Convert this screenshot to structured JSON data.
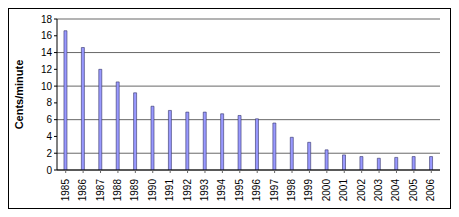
{
  "chart_data": {
    "type": "bar",
    "ylabel": "Cents/minute",
    "categories": [
      "1985",
      "1986",
      "1987",
      "1988",
      "1989",
      "1990",
      "1991",
      "1992",
      "1993",
      "1994",
      "1995",
      "1996",
      "1997",
      "1998",
      "1999",
      "2000",
      "2001",
      "2002",
      "2003",
      "2004",
      "2005",
      "2006"
    ],
    "values": [
      16.6,
      14.6,
      12.0,
      10.5,
      9.2,
      7.6,
      7.1,
      6.9,
      6.9,
      6.7,
      6.5,
      6.1,
      5.6,
      3.9,
      3.3,
      2.4,
      1.8,
      1.6,
      1.4,
      1.5,
      1.6,
      1.6
    ],
    "color": "#9999ff",
    "ylim": [
      0,
      18
    ],
    "yticks": [
      0,
      2,
      4,
      6,
      8,
      10,
      12,
      14,
      16,
      18
    ],
    "grid": true
  }
}
